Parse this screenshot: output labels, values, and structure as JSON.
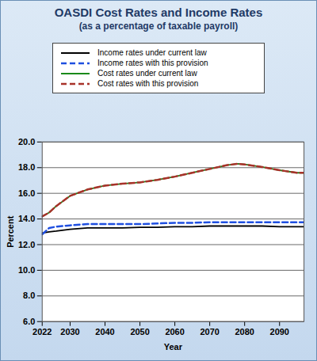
{
  "chart_data": {
    "type": "line",
    "title": "OASDI Cost Rates and Income Rates",
    "subtitle": "(as a percentage of taxable payroll)",
    "x_label": "Year",
    "y_label": "Percent",
    "x": [
      2022,
      2024,
      2026,
      2030,
      2035,
      2040,
      2045,
      2050,
      2055,
      2060,
      2065,
      2070,
      2075,
      2078,
      2080,
      2085,
      2090,
      2095,
      2097
    ],
    "series": [
      {
        "name": "Income rates under current law",
        "color": "#000000",
        "line_style": "solid",
        "values": [
          12.9,
          13.0,
          13.05,
          13.2,
          13.3,
          13.3,
          13.3,
          13.35,
          13.35,
          13.4,
          13.4,
          13.45,
          13.45,
          13.45,
          13.45,
          13.45,
          13.4,
          13.4,
          13.4
        ]
      },
      {
        "name": "Income rates with this provision",
        "color": "#1f4fe0",
        "line_style": "dashed",
        "values": [
          12.8,
          13.3,
          13.4,
          13.5,
          13.6,
          13.6,
          13.6,
          13.6,
          13.65,
          13.7,
          13.7,
          13.75,
          13.75,
          13.75,
          13.75,
          13.75,
          13.75,
          13.75,
          13.75
        ]
      },
      {
        "name": "Cost rates under current law",
        "color": "#1a8a1a",
        "line_style": "solid",
        "values": [
          14.2,
          14.5,
          15.0,
          15.8,
          16.3,
          16.6,
          16.75,
          16.85,
          17.05,
          17.3,
          17.6,
          17.9,
          18.2,
          18.3,
          18.25,
          18.05,
          17.8,
          17.6,
          17.6
        ]
      },
      {
        "name": "Cost rates with this provision",
        "color": "#a8322a",
        "line_style": "dashed",
        "values": [
          14.2,
          14.5,
          15.0,
          15.8,
          16.3,
          16.6,
          16.75,
          16.85,
          17.05,
          17.3,
          17.6,
          17.9,
          18.2,
          18.3,
          18.25,
          18.05,
          17.8,
          17.6,
          17.6
        ]
      }
    ],
    "xlim": [
      2022,
      2097
    ],
    "xticks": [
      2022,
      2030,
      2040,
      2050,
      2060,
      2070,
      2080,
      2090
    ],
    "ylim": [
      6,
      20
    ],
    "yticks": [
      {
        "value": 6,
        "label": "6.0"
      },
      {
        "value": 8,
        "label": "8.0"
      },
      {
        "value": 10,
        "label": "10.0"
      },
      {
        "value": 12,
        "label": "12.0"
      },
      {
        "value": 14,
        "label": "14.0"
      },
      {
        "value": 16,
        "label": "16.0"
      },
      {
        "value": 18,
        "label": "18.0"
      },
      {
        "value": 20,
        "label": "20.0"
      }
    ],
    "grid": true,
    "legend": "top"
  }
}
